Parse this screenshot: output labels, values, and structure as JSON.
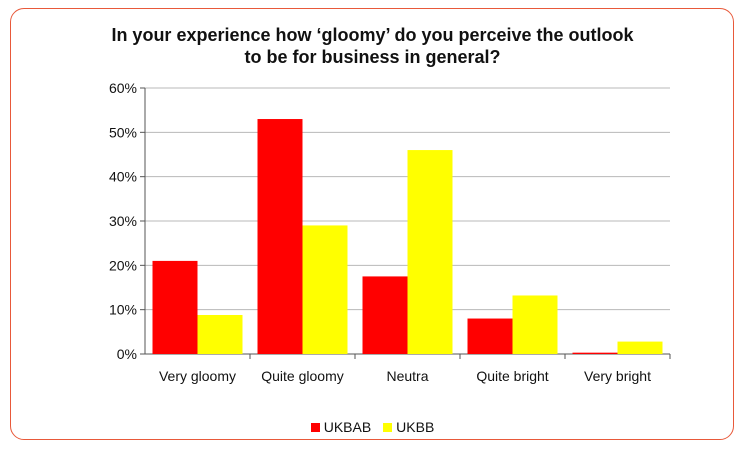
{
  "chart_data": {
    "type": "bar",
    "title_lines": [
      "In your experience how ‘gloomy’ do you perceive the outlook",
      "to be for business in general?"
    ],
    "categories": [
      "Very gloomy",
      "Quite gloomy",
      "Neutra",
      "Quite bright",
      "Very bright"
    ],
    "series": [
      {
        "name": "UKBAB",
        "color": "#ff0000",
        "values": [
          21,
          53,
          17.5,
          8,
          0.3
        ]
      },
      {
        "name": "UKBB",
        "color": "#ffff00",
        "values": [
          8.8,
          29,
          46,
          13.2,
          2.8
        ]
      }
    ],
    "ylim": [
      0,
      60
    ],
    "yticks": [
      0,
      10,
      20,
      30,
      40,
      50,
      60
    ],
    "ytick_labels": [
      "0%",
      "10%",
      "20%",
      "30%",
      "40%",
      "50%",
      "60%"
    ],
    "grid": true,
    "legend_position": "bottom"
  }
}
